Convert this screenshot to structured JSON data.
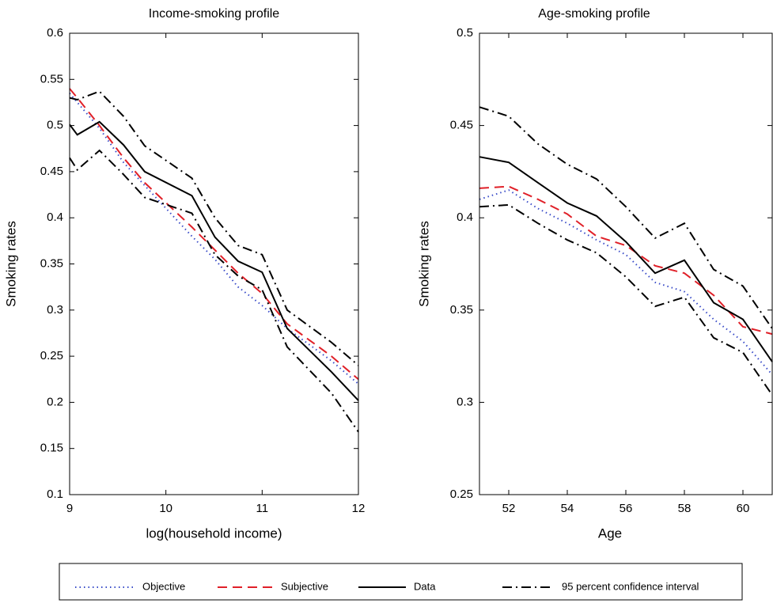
{
  "chart_data": [
    {
      "type": "line",
      "title": "Income-smoking profile",
      "xlabel": "log(household income)",
      "ylabel": "Smoking rates",
      "x": [
        9,
        9.08,
        9.31,
        9.56,
        9.78,
        10.27,
        10.51,
        10.75,
        11.0,
        11.26,
        11.72,
        12
      ],
      "xlim": [
        9,
        12
      ],
      "xticks": [
        9,
        10,
        11,
        12
      ],
      "ylim": [
        0.1,
        0.6
      ],
      "yticks": [
        0.1,
        0.15,
        0.2,
        0.25,
        0.3,
        0.35,
        0.4,
        0.45,
        0.5,
        0.55,
        0.6
      ],
      "series": [
        {
          "name": "Objective",
          "color": "#3a4cc8",
          "dash": "dotted",
          "values": [
            0.535,
            0.525,
            0.497,
            0.46,
            0.435,
            0.38,
            0.355,
            0.325,
            0.305,
            0.28,
            0.245,
            0.22
          ]
        },
        {
          "name": "Subjective",
          "color": "#e02028",
          "dash": "dashed",
          "values": [
            0.54,
            0.53,
            0.5,
            0.465,
            0.438,
            0.39,
            0.365,
            0.34,
            0.318,
            0.285,
            0.25,
            0.225
          ]
        },
        {
          "name": "Data",
          "color": "#000000",
          "dash": "solid",
          "values": [
            0.501,
            0.49,
            0.504,
            0.479,
            0.45,
            0.424,
            0.379,
            0.353,
            0.341,
            0.28,
            0.233,
            0.202
          ]
        },
        {
          "name": "95 percent confidence interval",
          "color": "#000000",
          "dash": "dashdot",
          "upper": [
            0.53,
            0.528,
            0.537,
            0.51,
            0.478,
            0.443,
            0.4,
            0.37,
            0.36,
            0.3,
            0.265,
            0.24
          ],
          "lower": [
            0.465,
            0.452,
            0.473,
            0.447,
            0.422,
            0.405,
            0.36,
            0.337,
            0.322,
            0.26,
            0.21,
            0.168
          ]
        }
      ]
    },
    {
      "type": "line",
      "title": "Age-smoking profile",
      "xlabel": "Age",
      "ylabel": "Smoking rates",
      "x": [
        51,
        52,
        53,
        54,
        55,
        56,
        57,
        58,
        59,
        60,
        61
      ],
      "xlim": [
        51,
        61
      ],
      "xticks": [
        52,
        54,
        56,
        58,
        60
      ],
      "ylim": [
        0.25,
        0.5
      ],
      "yticks": [
        0.25,
        0.3,
        0.35,
        0.4,
        0.45,
        0.5
      ],
      "series": [
        {
          "color": "#3a4cc8",
          "dash": "dotted",
          "values": [
            0.41,
            0.415,
            0.405,
            0.397,
            0.388,
            0.38,
            0.365,
            0.36,
            0.345,
            0.333,
            0.315
          ]
        },
        {
          "color": "#e02028",
          "dash": "dashed",
          "values": [
            0.416,
            0.417,
            0.41,
            0.402,
            0.39,
            0.385,
            0.374,
            0.37,
            0.358,
            0.341,
            0.337
          ]
        },
        {
          "color": "#000000",
          "dash": "solid",
          "values": [
            0.433,
            0.43,
            0.419,
            0.408,
            0.401,
            0.387,
            0.37,
            0.377,
            0.354,
            0.345,
            0.322
          ]
        },
        {
          "color": "#000000",
          "dash": "dashdot",
          "upper": [
            0.46,
            0.455,
            0.44,
            0.429,
            0.421,
            0.406,
            0.389,
            0.397,
            0.372,
            0.363,
            0.34
          ],
          "lower": [
            0.406,
            0.407,
            0.397,
            0.388,
            0.381,
            0.368,
            0.352,
            0.357,
            0.335,
            0.327,
            0.304
          ]
        }
      ]
    }
  ]
}
